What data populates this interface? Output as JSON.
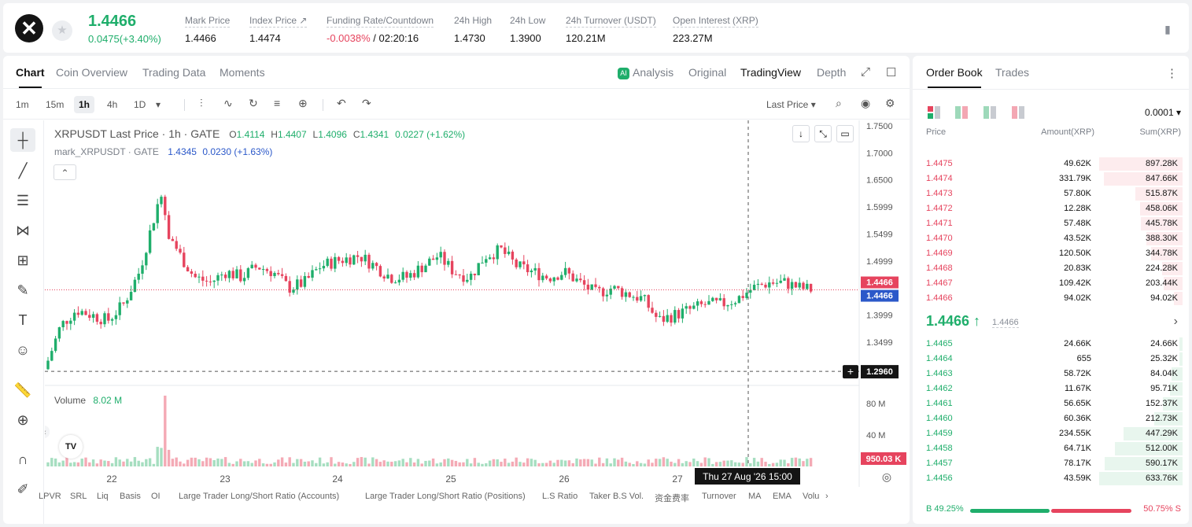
{
  "header": {
    "logo": "✕",
    "star": "★",
    "last_price": "1.4466",
    "change": "0.0475(+3.40%)",
    "stats": [
      {
        "label": "Mark Price",
        "value": "1.4466"
      },
      {
        "label": "Index Price ↗",
        "value": "1.4474"
      },
      {
        "label": "Funding Rate/Countdown",
        "value_red": "-0.0038%",
        "value": " / 02:20:16"
      },
      {
        "label": "24h High",
        "value": "1.4730"
      },
      {
        "label": "24h Low",
        "value": "1.3900"
      },
      {
        "label": "24h Turnover (USDT)",
        "value": "120.21M"
      },
      {
        "label": "Open Interest (XRP)",
        "value": "223.27M"
      }
    ],
    "book_icon": "▮"
  },
  "chart_tabs": [
    "Chart",
    "Coin Overview",
    "Trading Data",
    "Moments"
  ],
  "view_tabs": {
    "analysis": "Analysis",
    "ai": "AI",
    "original": "Original",
    "tradingview": "TradingView",
    "depth": "Depth",
    "expand_icon": "⤢",
    "window_icon": "☐"
  },
  "timeframes": [
    "1m",
    "15m",
    "1h",
    "4h",
    "1D",
    "▾"
  ],
  "toolbar_icons": {
    "candle": "⫶",
    "indicator": "∿",
    "replay": "↻",
    "layout": "≡",
    "add": "⊕",
    "undo": "↶",
    "redo": "↷",
    "search": "⌕",
    "camera": "◉",
    "settings": "⚙"
  },
  "price_type": "Last Price ▾",
  "drawing_tools": [
    "┼",
    "╱",
    "☰",
    "⋈",
    "⊞",
    "✎",
    "T",
    "☺",
    "📏",
    "⊕",
    "∩",
    "✐"
  ],
  "legend": {
    "symbol": "XRPUSDT Last Price · 1h · GATE",
    "o_label": "O",
    "o": "1.4114",
    "h_label": "H",
    "h": "1.4407",
    "l_label": "L",
    "l": "1.4096",
    "c_label": "C",
    "c": "1.4341",
    "chg": "0.0227 (+1.62%)",
    "mark": "mark_XRPUSDT · GATE",
    "mark_val": "1.4345",
    "mark_chg": "0.0230 (+1.63%)",
    "collapse": "⌃",
    "volume_label": "Volume",
    "volume_val": "8.02 M",
    "tv_logo": "TV",
    "chart_btn_down": "↓",
    "chart_btn_shrink": "⤡",
    "chart_btn_window": "▭",
    "crosshair_plus": "+",
    "scroll_handle": "‹",
    "target_icon": "◎"
  },
  "chart_data": {
    "type": "candlestick",
    "y_ticks": [
      "1.7500",
      "1.7000",
      "1.6500",
      "1.5999",
      "1.5499",
      "1.4999",
      "1.3999",
      "1.3499"
    ],
    "y_tick_values": [
      1.75,
      1.7,
      1.65,
      1.5999,
      1.5499,
      1.4999,
      1.3999,
      1.3499
    ],
    "volume_ticks": [
      "80 M",
      "40 M"
    ],
    "volume_tick_values": [
      80,
      40
    ],
    "x_ticks": [
      "22",
      "23",
      "24",
      "25",
      "26",
      "27"
    ],
    "last_price_label": "1.4466",
    "mark_price_label": "1.4466",
    "crosshair_price": "1.2960",
    "crosshair_price_value": 1.296,
    "volume_last_label": "950.03 K",
    "crosshair_time": "Thu 27 Aug '26   15:00",
    "last_price": 1.4466,
    "price_range": [
      1.27,
      1.76
    ],
    "volume_range": [
      0,
      100
    ]
  },
  "bottom_indicators": [
    "LPVR",
    "SRL",
    "Liq",
    "Basis",
    "OI",
    "Large Trader Long/Short Ratio (Accounts)",
    "Large Trader Long/Short Ratio (Positions)",
    "L.S Ratio",
    "Taker B.S Vol.",
    "资金费率",
    "Turnover",
    "MA",
    "EMA",
    "Volu",
    "›"
  ],
  "orderbook": {
    "tabs": [
      "Order Book",
      "Trades"
    ],
    "more_icon": "⋮",
    "precision": "0.0001 ▾",
    "headers": {
      "price": "Price",
      "amount": "Amount(XRP)",
      "sum": "Sum(XRP)"
    },
    "asks": [
      {
        "price": "1.4475",
        "amount": "49.62K",
        "sum": "897.28K",
        "depth": 1.0
      },
      {
        "price": "1.4474",
        "amount": "331.79K",
        "sum": "847.66K",
        "depth": 0.94
      },
      {
        "price": "1.4473",
        "amount": "57.80K",
        "sum": "515.87K",
        "depth": 0.57
      },
      {
        "price": "1.4472",
        "amount": "12.28K",
        "sum": "458.06K",
        "depth": 0.51
      },
      {
        "price": "1.4471",
        "amount": "57.48K",
        "sum": "445.78K",
        "depth": 0.5
      },
      {
        "price": "1.4470",
        "amount": "43.52K",
        "sum": "388.30K",
        "depth": 0.43
      },
      {
        "price": "1.4469",
        "amount": "120.50K",
        "sum": "344.78K",
        "depth": 0.38
      },
      {
        "price": "1.4468",
        "amount": "20.83K",
        "sum": "224.28K",
        "depth": 0.25
      },
      {
        "price": "1.4467",
        "amount": "109.42K",
        "sum": "203.44K",
        "depth": 0.23
      },
      {
        "price": "1.4466",
        "amount": "94.02K",
        "sum": "94.02K",
        "depth": 0.1
      }
    ],
    "mid_price": "1.4466 ↑",
    "mid_mark": "1.4466",
    "mid_arrow": "›",
    "bids": [
      {
        "price": "1.4465",
        "amount": "24.66K",
        "sum": "24.66K",
        "depth": 0.04
      },
      {
        "price": "1.4464",
        "amount": "655",
        "sum": "25.32K",
        "depth": 0.04
      },
      {
        "price": "1.4463",
        "amount": "58.72K",
        "sum": "84.04K",
        "depth": 0.13
      },
      {
        "price": "1.4462",
        "amount": "11.67K",
        "sum": "95.71K",
        "depth": 0.15
      },
      {
        "price": "1.4461",
        "amount": "56.65K",
        "sum": "152.37K",
        "depth": 0.24
      },
      {
        "price": "1.4460",
        "amount": "60.36K",
        "sum": "212.73K",
        "depth": 0.34
      },
      {
        "price": "1.4459",
        "amount": "234.55K",
        "sum": "447.29K",
        "depth": 0.71
      },
      {
        "price": "1.4458",
        "amount": "64.71K",
        "sum": "512.00K",
        "depth": 0.81
      },
      {
        "price": "1.4457",
        "amount": "78.17K",
        "sum": "590.17K",
        "depth": 0.93
      },
      {
        "price": "1.4456",
        "amount": "43.59K",
        "sum": "633.76K",
        "depth": 1.0
      }
    ],
    "buy_ratio": "B 49.25%",
    "sell_ratio": "50.75% S",
    "buy_ratio_value": 0.4925
  },
  "colors": {
    "up": "#1fae6b",
    "down": "#e6445e",
    "up_light": "#e8f6ee",
    "down_light": "#fdecee"
  }
}
